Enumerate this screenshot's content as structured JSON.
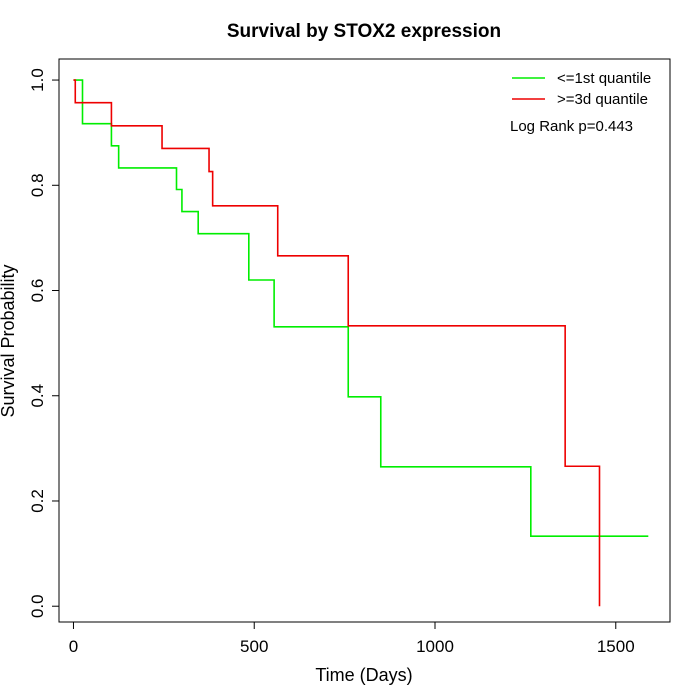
{
  "chart_data": {
    "type": "line",
    "title": "Survival by STOX2 expression",
    "xlabel": "Time (Days)",
    "ylabel": "Survival Probability",
    "xlim": [
      -40,
      1650
    ],
    "ylim": [
      -0.03,
      1.04
    ],
    "xticks": [
      0,
      500,
      1000,
      1500
    ],
    "yticks": [
      0.0,
      0.2,
      0.4,
      0.6,
      0.8,
      1.0
    ],
    "xtick_labels": [
      "0",
      "500",
      "1000",
      "1500"
    ],
    "ytick_labels": [
      "0.0",
      "0.2",
      "0.4",
      "0.6",
      "0.8",
      "1.0"
    ],
    "grid": false,
    "legend_position": "top-right",
    "annotation": "Log Rank p=0.443",
    "series": [
      {
        "name": "<=1st quantile",
        "color": "#00ee00",
        "step": true,
        "x": [
          0,
          25,
          105,
          125,
          140,
          285,
          300,
          345,
          485,
          555,
          760,
          850,
          1265,
          1590
        ],
        "y": [
          1.0,
          0.917,
          0.875,
          0.833,
          0.833,
          0.792,
          0.75,
          0.708,
          0.62,
          0.531,
          0.398,
          0.265,
          0.133,
          0.133
        ]
      },
      {
        "name": ">=3d quantile",
        "color": "#ee0000",
        "step": true,
        "x": [
          0,
          5,
          105,
          245,
          375,
          385,
          565,
          760,
          1360,
          1455
        ],
        "y": [
          1.0,
          0.957,
          0.913,
          0.87,
          0.826,
          0.761,
          0.666,
          0.533,
          0.266,
          0.0
        ]
      }
    ]
  }
}
